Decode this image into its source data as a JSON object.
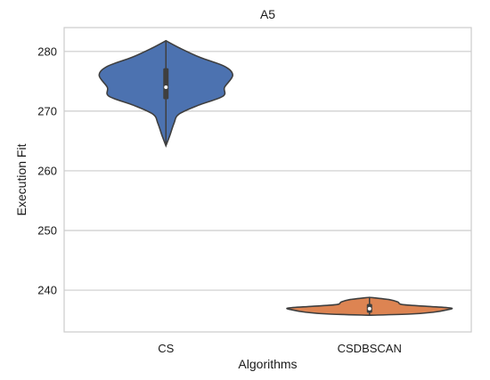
{
  "chart_data": {
    "type": "violin",
    "title": "A5",
    "xlabel": "Algorithms",
    "ylabel": "Execution Fit",
    "ylim": [
      233,
      284
    ],
    "yticks": [
      240,
      250,
      260,
      270,
      280
    ],
    "grid": "horizontal",
    "categories": [
      "CS",
      "CSDBSCAN"
    ],
    "colors": [
      "#4c72b0",
      "#dd8452"
    ],
    "series": [
      {
        "category": "CS",
        "min": 264.2,
        "q1": 272.0,
        "median": 274.0,
        "q3": 277.2,
        "max": 281.8,
        "density": [
          [
            264.2,
            0.0
          ],
          [
            266.0,
            0.05
          ],
          [
            268.0,
            0.1
          ],
          [
            269.5,
            0.16
          ],
          [
            271.0,
            0.4
          ],
          [
            272.5,
            0.7
          ],
          [
            274.0,
            0.72
          ],
          [
            276.0,
            0.82
          ],
          [
            277.5,
            0.72
          ],
          [
            279.0,
            0.42
          ],
          [
            280.5,
            0.18
          ],
          [
            281.8,
            0.0
          ]
        ]
      },
      {
        "category": "CSDBSCAN",
        "min": 235.8,
        "q1": 236.2,
        "median": 236.9,
        "q3": 237.7,
        "max": 238.8,
        "density": [
          [
            235.8,
            0.0
          ],
          [
            236.0,
            0.5
          ],
          [
            236.3,
            0.78
          ],
          [
            236.7,
            0.95
          ],
          [
            237.0,
            1.0
          ],
          [
            237.3,
            0.7
          ],
          [
            237.6,
            0.4
          ],
          [
            238.0,
            0.35
          ],
          [
            238.4,
            0.25
          ],
          [
            238.8,
            0.0
          ]
        ]
      }
    ]
  }
}
